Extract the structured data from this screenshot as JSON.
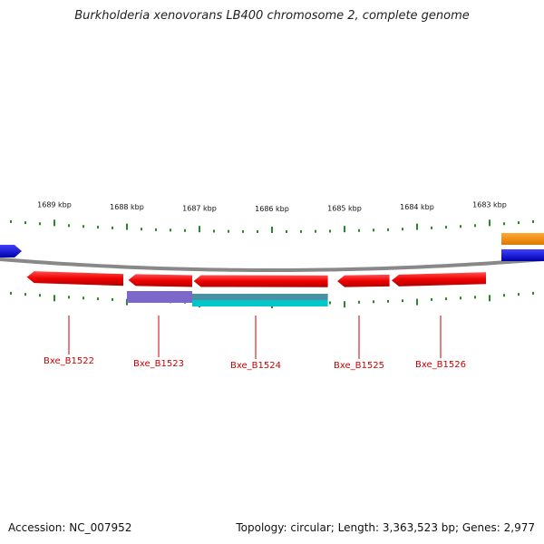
{
  "title": "Burkholderia xenovorans LB400 chromosome 2, complete genome",
  "footer": {
    "accession": "Accession: NC_007952",
    "topology": "Topology: circular; Length: 3,363,523 bp; Genes: 2,977"
  },
  "ruler": {
    "unit": "kbp",
    "ticks": [
      {
        "kbp": 1689,
        "label": "1689 kbp"
      },
      {
        "kbp": 1688,
        "label": "1688 kbp"
      },
      {
        "kbp": 1687,
        "label": "1687 kbp"
      },
      {
        "kbp": 1686,
        "label": "1686 kbp"
      },
      {
        "kbp": 1685,
        "label": "1685 kbp"
      },
      {
        "kbp": 1684,
        "label": "1684 kbp"
      },
      {
        "kbp": 1683,
        "label": "1683 kbp"
      }
    ]
  },
  "genes": [
    {
      "name": "Bxe_B1522",
      "start": 1688.05,
      "end": 1689.38,
      "strand": "reverse"
    },
    {
      "name": "Bxe_B1523",
      "start": 1687.1,
      "end": 1687.98,
      "strand": "reverse"
    },
    {
      "name": "Bxe_B1524",
      "start": 1685.23,
      "end": 1687.08,
      "strand": "reverse"
    },
    {
      "name": "Bxe_B1525",
      "start": 1684.38,
      "end": 1685.1,
      "strand": "reverse"
    },
    {
      "name": "Bxe_B1526",
      "start": 1683.05,
      "end": 1684.35,
      "strand": "reverse"
    }
  ],
  "features": [
    {
      "kind": "cds",
      "start": 1687.1,
      "end": 1688.0,
      "color": "#7b68c8"
    },
    {
      "kind": "cds",
      "start": 1685.23,
      "end": 1687.1,
      "color": "#4a90a4"
    },
    {
      "kind": "cds",
      "start": 1685.23,
      "end": 1687.1,
      "color": "#00c8c8"
    }
  ],
  "edge_genes": [
    {
      "side": "left",
      "color": "#0000ee"
    },
    {
      "side": "right",
      "color": "#ff8800"
    },
    {
      "side": "right",
      "color": "#0000ee"
    }
  ],
  "colors": {
    "gene": "#ee0000",
    "tick": "#228B22",
    "backbone": "#888888",
    "label": "#cc0000"
  }
}
